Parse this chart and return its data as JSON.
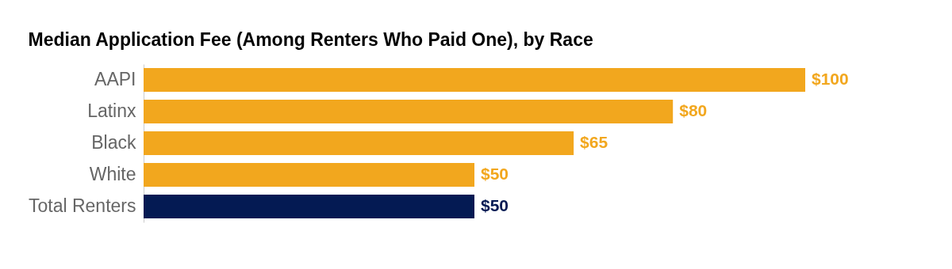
{
  "chart_data": {
    "type": "bar",
    "orientation": "horizontal",
    "title": "Median Application Fee (Among Renters Who Paid One), by Race",
    "categories": [
      "AAPI",
      "Latinx",
      "Black",
      "White",
      "Total Renters"
    ],
    "values": [
      100,
      80,
      65,
      50,
      50
    ],
    "colors": [
      "#f2a71e",
      "#f2a71e",
      "#f2a71e",
      "#f2a71e",
      "#041a53"
    ],
    "value_labels": [
      "$100",
      "$80",
      "$65",
      "$50",
      "$50"
    ],
    "grid": false
  }
}
